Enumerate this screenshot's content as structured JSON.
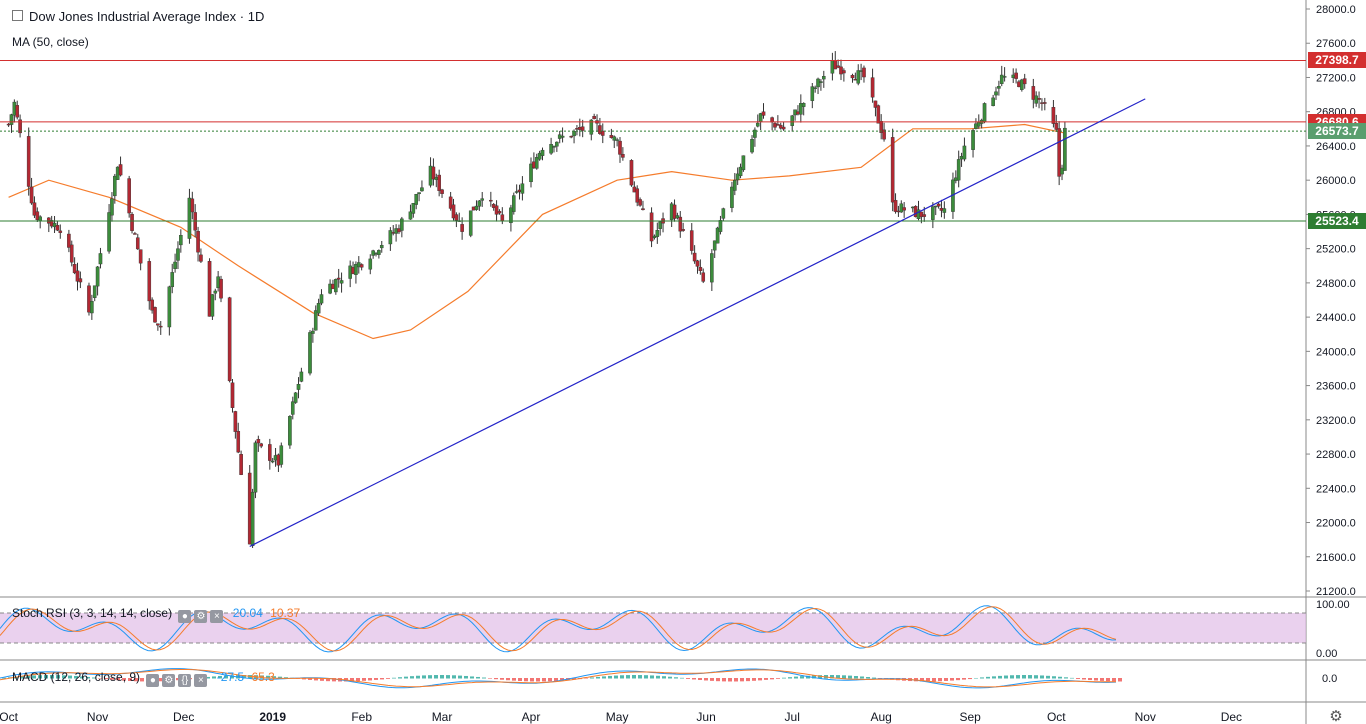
{
  "header": {
    "title": "Dow Jones Industrial Average Index · 1D",
    "ma_label": "MA (50, close)"
  },
  "colors": {
    "up": "#26a69a",
    "up_body": "#3c8c3c",
    "down": "#b22833",
    "ma": "#f57c2c",
    "trend": "#2323c8",
    "resistance": "#d32f2f",
    "support": "#2e7d32",
    "stoch_fill": "#e1bee7"
  },
  "chart_data": {
    "type": "candlestick",
    "y_ticks": [
      "28000.0",
      "27600.0",
      "27200.0",
      "26800.0",
      "26400.0",
      "26000.0",
      "25600.0",
      "25200.0",
      "24800.0",
      "24400.0",
      "24000.0",
      "23600.0",
      "23200.0",
      "22800.0",
      "22400.0",
      "22000.0",
      "21600.0",
      "21200.0"
    ],
    "ylim": [
      21150,
      28100
    ],
    "x_ticks": [
      "Oct",
      "Nov",
      "Dec",
      "2019",
      "Feb",
      "Mar",
      "Apr",
      "May",
      "Jun",
      "Jul",
      "Aug",
      "Sep",
      "Oct",
      "Nov",
      "Dec"
    ],
    "levels": [
      {
        "label": "27398.7",
        "value": 27398.7,
        "kind": "resistance"
      },
      {
        "label": "26680.6",
        "value": 26680.6,
        "kind": "resistance"
      },
      {
        "label": "26573.7",
        "value": 26573.7,
        "kind": "last"
      },
      {
        "label": "25523.4",
        "value": 25523.4,
        "kind": "support"
      }
    ],
    "trendline": {
      "from": [
        "2018-12-24",
        21720
      ],
      "to": [
        "2019-11-01",
        26950
      ]
    },
    "anchors": [
      [
        "2018-10-01",
        26650
      ],
      [
        "2018-10-03",
        26900
      ],
      [
        "2018-10-10",
        25600
      ],
      [
        "2018-10-19",
        25450
      ],
      [
        "2018-10-29",
        24450
      ],
      [
        "2018-11-08",
        26200
      ],
      [
        "2018-11-20",
        24450
      ],
      [
        "2018-11-23",
        24300
      ],
      [
        "2018-12-03",
        25800
      ],
      [
        "2018-12-10",
        24450
      ],
      [
        "2018-12-13",
        24900
      ],
      [
        "2018-12-17",
        23600
      ],
      [
        "2018-12-24",
        21800
      ],
      [
        "2018-12-26",
        22900
      ],
      [
        "2019-01-03",
        22700
      ],
      [
        "2019-01-18",
        24700
      ],
      [
        "2019-02-01",
        25050
      ],
      [
        "2019-02-14",
        25450
      ],
      [
        "2019-02-25",
        26100
      ],
      [
        "2019-03-08",
        25450
      ],
      [
        "2019-03-15",
        25850
      ],
      [
        "2019-03-22",
        25500
      ],
      [
        "2019-04-05",
        26400
      ],
      [
        "2019-04-23",
        26650
      ],
      [
        "2019-05-01",
        26450
      ],
      [
        "2019-05-13",
        25300
      ],
      [
        "2019-05-20",
        25700
      ],
      [
        "2019-05-31",
        24800
      ],
      [
        "2019-06-10",
        25950
      ],
      [
        "2019-06-20",
        26750
      ],
      [
        "2019-06-28",
        26600
      ],
      [
        "2019-07-15",
        27350
      ],
      [
        "2019-07-26",
        27200
      ],
      [
        "2019-08-02",
        26500
      ],
      [
        "2019-08-05",
        25700
      ],
      [
        "2019-08-15",
        25600
      ],
      [
        "2019-08-23",
        25650
      ],
      [
        "2019-08-30",
        26400
      ],
      [
        "2019-09-12",
        27200
      ],
      [
        "2019-09-18",
        27150
      ],
      [
        "2019-09-26",
        26900
      ],
      [
        "2019-10-01",
        26550
      ],
      [
        "2019-10-02",
        26050
      ],
      [
        "2019-10-03",
        26200
      ],
      [
        "2019-10-04",
        26573.7
      ]
    ],
    "ma50_anchors": [
      [
        "2018-10-01",
        25800
      ],
      [
        "2018-10-15",
        26000
      ],
      [
        "2018-11-05",
        25800
      ],
      [
        "2018-11-30",
        25450
      ],
      [
        "2018-12-20",
        25000
      ],
      [
        "2019-01-15",
        24450
      ],
      [
        "2019-02-05",
        24150
      ],
      [
        "2019-02-18",
        24250
      ],
      [
        "2019-03-10",
        24700
      ],
      [
        "2019-04-05",
        25600
      ],
      [
        "2019-05-01",
        26000
      ],
      [
        "2019-05-20",
        26100
      ],
      [
        "2019-06-10",
        26000
      ],
      [
        "2019-06-30",
        26050
      ],
      [
        "2019-07-25",
        26150
      ],
      [
        "2019-08-12",
        26600
      ],
      [
        "2019-09-01",
        26600
      ],
      [
        "2019-09-20",
        26650
      ],
      [
        "2019-10-04",
        26550
      ]
    ],
    "stoch_rsi": {
      "label": "Stoch RSI (3, 3, 14, 14, close)",
      "k": "20.04",
      "d": "10.37",
      "ticks": [
        "100.00",
        "0.00"
      ]
    },
    "macd": {
      "label": "MACD (12, 26, close, 9)",
      "value": "-27.5",
      "signal": "65.3",
      "ticks": [
        "0.0"
      ]
    }
  }
}
